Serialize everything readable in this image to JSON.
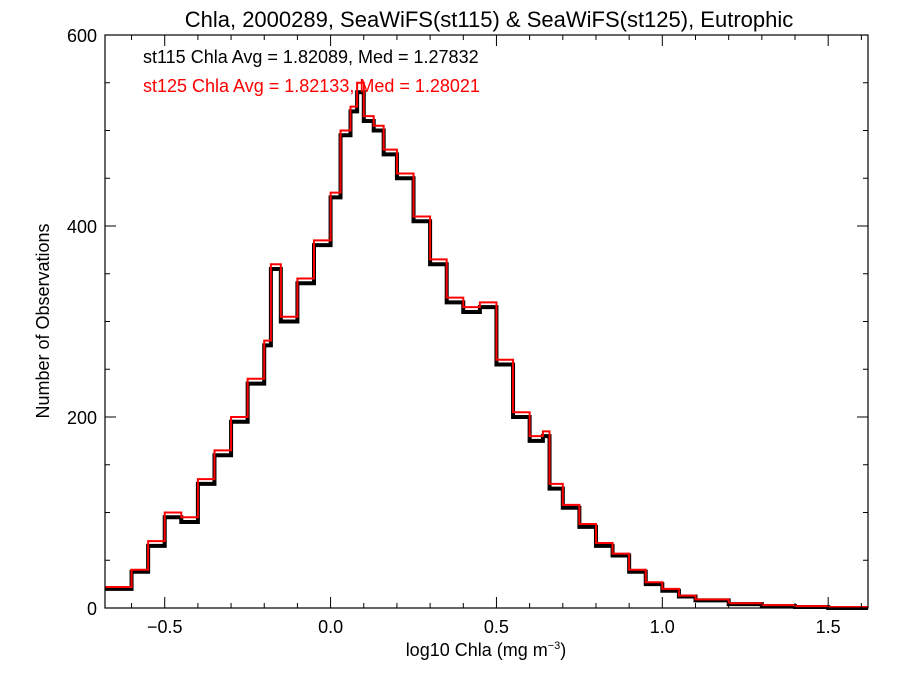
{
  "chart_data": {
    "type": "line",
    "title": "Chla, 2000289, SeaWiFS(st115) & SeaWiFS(st125), Eutrophic",
    "xlabel_main": "log10 Chla (mg m",
    "xlabel_sup": "−3",
    "xlabel_close": ")",
    "ylabel": "Number of Observations",
    "xlim": [
      -0.68,
      1.62
    ],
    "ylim": [
      0,
      600
    ],
    "x_ticks": [
      -0.5,
      0.0,
      0.5,
      1.0,
      1.5
    ],
    "x_tick_labels": [
      "−0.5",
      "0.0",
      "0.5",
      "1.0",
      "1.5"
    ],
    "y_ticks": [
      0,
      200,
      400,
      600
    ],
    "y_tick_labels": [
      "0",
      "200",
      "400",
      "600"
    ],
    "grid": false,
    "annotations": [
      {
        "text": "st115 Chla Avg = 1.82089, Med = 1.27832",
        "color": "#000000"
      },
      {
        "text": "st125 Chla Avg = 1.82133, Med = 1.28021",
        "color": "#ff0000"
      }
    ],
    "series": [
      {
        "color": "#000000",
        "line_width": 4,
        "points": [
          [
            -0.68,
            20
          ],
          [
            -0.6,
            38
          ],
          [
            -0.55,
            65
          ],
          [
            -0.5,
            95
          ],
          [
            -0.45,
            90
          ],
          [
            -0.4,
            130
          ],
          [
            -0.35,
            160
          ],
          [
            -0.3,
            195
          ],
          [
            -0.25,
            235
          ],
          [
            -0.2,
            275
          ],
          [
            -0.18,
            355
          ],
          [
            -0.15,
            300
          ],
          [
            -0.1,
            340
          ],
          [
            -0.05,
            380
          ],
          [
            0.0,
            430
          ],
          [
            0.03,
            495
          ],
          [
            0.06,
            520
          ],
          [
            0.08,
            540
          ],
          [
            0.1,
            510
          ],
          [
            0.13,
            500
          ],
          [
            0.16,
            475
          ],
          [
            0.2,
            450
          ],
          [
            0.25,
            405
          ],
          [
            0.3,
            360
          ],
          [
            0.35,
            320
          ],
          [
            0.4,
            310
          ],
          [
            0.45,
            315
          ],
          [
            0.5,
            255
          ],
          [
            0.55,
            200
          ],
          [
            0.6,
            175
          ],
          [
            0.64,
            180
          ],
          [
            0.66,
            125
          ],
          [
            0.7,
            105
          ],
          [
            0.75,
            85
          ],
          [
            0.8,
            65
          ],
          [
            0.85,
            55
          ],
          [
            0.9,
            38
          ],
          [
            0.95,
            25
          ],
          [
            1.0,
            18
          ],
          [
            1.05,
            12
          ],
          [
            1.1,
            8
          ],
          [
            1.2,
            4
          ],
          [
            1.3,
            2
          ],
          [
            1.4,
            1
          ],
          [
            1.5,
            0
          ],
          [
            1.62,
            0
          ]
        ]
      },
      {
        "color": "#ff0000",
        "line_width": 2,
        "points": [
          [
            -0.68,
            22
          ],
          [
            -0.6,
            40
          ],
          [
            -0.55,
            70
          ],
          [
            -0.5,
            100
          ],
          [
            -0.45,
            95
          ],
          [
            -0.4,
            135
          ],
          [
            -0.35,
            165
          ],
          [
            -0.3,
            200
          ],
          [
            -0.25,
            240
          ],
          [
            -0.2,
            280
          ],
          [
            -0.18,
            360
          ],
          [
            -0.15,
            305
          ],
          [
            -0.1,
            345
          ],
          [
            -0.05,
            385
          ],
          [
            0.0,
            435
          ],
          [
            0.03,
            500
          ],
          [
            0.06,
            525
          ],
          [
            0.08,
            550
          ],
          [
            0.1,
            515
          ],
          [
            0.13,
            505
          ],
          [
            0.16,
            480
          ],
          [
            0.2,
            455
          ],
          [
            0.25,
            410
          ],
          [
            0.3,
            365
          ],
          [
            0.35,
            325
          ],
          [
            0.4,
            315
          ],
          [
            0.45,
            320
          ],
          [
            0.5,
            260
          ],
          [
            0.55,
            205
          ],
          [
            0.6,
            180
          ],
          [
            0.64,
            185
          ],
          [
            0.66,
            130
          ],
          [
            0.7,
            108
          ],
          [
            0.75,
            88
          ],
          [
            0.8,
            68
          ],
          [
            0.85,
            57
          ],
          [
            0.9,
            40
          ],
          [
            0.95,
            27
          ],
          [
            1.0,
            20
          ],
          [
            1.05,
            13
          ],
          [
            1.1,
            9
          ],
          [
            1.2,
            5
          ],
          [
            1.3,
            3
          ],
          [
            1.4,
            2
          ],
          [
            1.5,
            1
          ],
          [
            1.62,
            1
          ]
        ]
      }
    ]
  }
}
